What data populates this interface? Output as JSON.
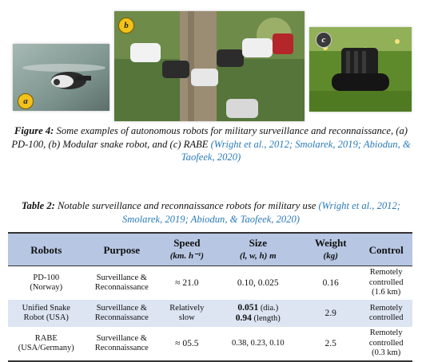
{
  "figure": {
    "images": [
      {
        "label": "a"
      },
      {
        "label": "b"
      },
      {
        "label": "c"
      }
    ],
    "caption": {
      "label": "Figure 4:",
      "text": " Some examples of autonomous robots for military surveillance and reconnaissance, (a) PD-100, (b) Modular snake robot, and (c) RABE ",
      "citation": "(Wright et al., 2012; Smolarek, 2019; Abiodun, & Taofeek, 2020)"
    }
  },
  "table": {
    "caption": {
      "label": "Table 2:",
      "text": " Notable surveillance and reconnaissance robots for military use ",
      "citation": "(Wright et al., 2012; Smolarek, 2019; Abiodun, & Taofeek, 2020)"
    },
    "headers": {
      "robots": "Robots",
      "purpose": "Purpose",
      "speed": "Speed",
      "speed_unit": "(km. h⁻¹)",
      "size": "Size",
      "size_unit": "(l, w, h) m",
      "weight": "Weight",
      "weight_unit": "(kg)",
      "control": "Control"
    },
    "rows": [
      {
        "robot": [
          "PD-100",
          "(Norway)"
        ],
        "purpose": [
          "Surveillance &",
          "Reconnaissance"
        ],
        "speed": [
          "≈ 21.0"
        ],
        "size": [
          "0.10, 0.025"
        ],
        "weight": "0.16",
        "control": [
          "Remotely",
          "controlled",
          "(1.6 km)"
        ]
      },
      {
        "robot": [
          "Unified Snake",
          "Robot (USA)"
        ],
        "purpose": [
          "Surveillance &",
          "Reconnaissance"
        ],
        "speed": [
          "Relatively",
          "slow"
        ],
        "size_value1": "0.051",
        "size_note1": " (dia.)",
        "size_value2": "0.94",
        "size_note2": " (length)",
        "weight": "2.9",
        "control": [
          "Remotely",
          "controlled"
        ]
      },
      {
        "robot": [
          "RABE",
          "(USA/Germany)"
        ],
        "purpose": [
          "Surveillance &",
          "Reconnaissance"
        ],
        "speed": [
          "≈ 05.5"
        ],
        "size": [
          "0.38, 0.23, 0.10"
        ],
        "weight": "2.5",
        "control": [
          "Remotely",
          "controlled",
          "(0.3 km)"
        ]
      }
    ]
  }
}
